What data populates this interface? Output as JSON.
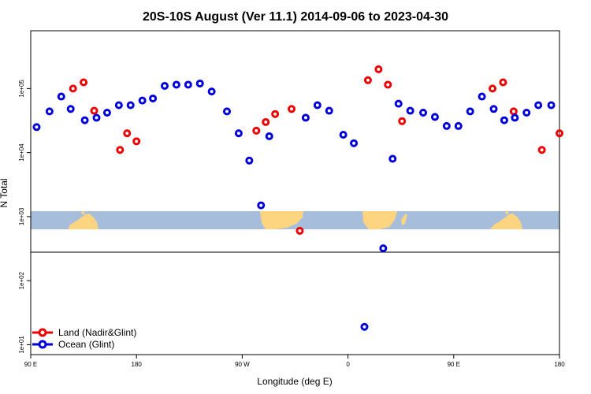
{
  "chart_data": {
    "type": "scatter",
    "title": "20S-10S August (Ver 11.1)   2014-09-06 to 2023-04-30",
    "xlabel": "Longitude (deg E)",
    "ylabel": "N Total",
    "x_scale": "linear",
    "y_scale": "log",
    "xlim": [
      90,
      540
    ],
    "ylim": [
      7,
      800000
    ],
    "x_ticks": [
      {
        "value": 90,
        "label": "90 E"
      },
      {
        "value": 180,
        "label": "180"
      },
      {
        "value": 270,
        "label": "90 W"
      },
      {
        "value": 360,
        "label": "0"
      },
      {
        "value": 450,
        "label": "90 E"
      },
      {
        "value": 540,
        "label": "180"
      }
    ],
    "y_ticks": [
      {
        "value": 10,
        "label": "1e+01"
      },
      {
        "value": 100,
        "label": "1e+02"
      },
      {
        "value": 1000,
        "label": "1e+03"
      },
      {
        "value": 10000,
        "label": "1e+04"
      },
      {
        "value": 100000,
        "label": "1e+05"
      }
    ],
    "grid": false,
    "legend_position": "bottom-left",
    "series": [
      {
        "name": "Land (Nadir&Glint)",
        "color": "#ee0000",
        "points": [
          [
            126,
            100000
          ],
          [
            135,
            125000
          ],
          [
            144,
            45000
          ],
          [
            166,
            11000
          ],
          [
            172,
            20000
          ],
          [
            180,
            15000
          ],
          [
            282,
            22000
          ],
          [
            290,
            30000
          ],
          [
            298,
            40000
          ],
          [
            312,
            48000
          ],
          [
            319,
            600
          ],
          [
            377,
            135000
          ],
          [
            386,
            200000
          ],
          [
            394,
            115000
          ],
          [
            406,
            31000
          ],
          [
            483,
            100000
          ],
          [
            492,
            125000
          ],
          [
            501,
            44000
          ],
          [
            525,
            11000
          ],
          [
            540,
            20000
          ]
        ]
      },
      {
        "name": "Ocean (Glint)",
        "color": "#0000dd",
        "points": [
          [
            95,
            25000
          ],
          [
            106,
            44000
          ],
          [
            116,
            75000
          ],
          [
            124,
            48000
          ],
          [
            136,
            32000
          ],
          [
            146,
            35000
          ],
          [
            155,
            42000
          ],
          [
            165,
            55000
          ],
          [
            175,
            55000
          ],
          [
            185,
            65000
          ],
          [
            194,
            70000
          ],
          [
            204,
            110000
          ],
          [
            214,
            115000
          ],
          [
            224,
            115000
          ],
          [
            234,
            120000
          ],
          [
            244,
            90000
          ],
          [
            257,
            44000
          ],
          [
            267,
            20000
          ],
          [
            276,
            7500
          ],
          [
            286,
            1500
          ],
          [
            293,
            18000
          ],
          [
            324,
            35000
          ],
          [
            334,
            55000
          ],
          [
            344,
            45000
          ],
          [
            356,
            19000
          ],
          [
            365,
            14000
          ],
          [
            374,
            19
          ],
          [
            390,
            320
          ],
          [
            398,
            8000
          ],
          [
            403,
            58000
          ],
          [
            413,
            45000
          ],
          [
            424,
            42000
          ],
          [
            434,
            36000
          ],
          [
            444,
            26000
          ],
          [
            454,
            26000
          ],
          [
            464,
            44000
          ],
          [
            474,
            75000
          ],
          [
            484,
            48000
          ],
          [
            493,
            32000
          ],
          [
            502,
            35000
          ],
          [
            512,
            42000
          ],
          [
            522,
            55000
          ],
          [
            533,
            55000
          ]
        ]
      }
    ]
  }
}
